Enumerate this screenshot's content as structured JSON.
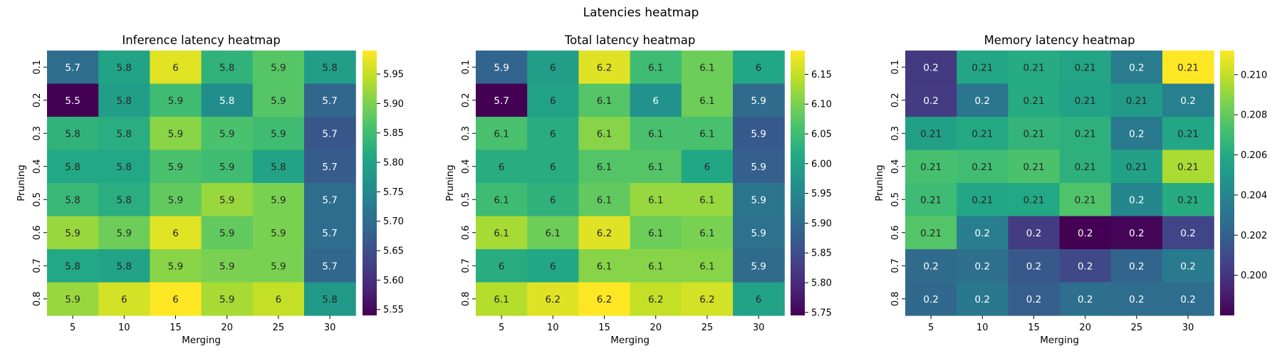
{
  "figure_title": "Latencies heatmap",
  "chart_data": [
    {
      "type": "heatmap",
      "title": "Inference latency heatmap",
      "xlabel": "Merging",
      "ylabel": "Pruning",
      "x_categories": [
        "5",
        "10",
        "15",
        "20",
        "25",
        "30"
      ],
      "y_categories": [
        "0.1",
        "0.2",
        "0.3",
        "0.4",
        "0.5",
        "0.6",
        "0.7",
        "0.8"
      ],
      "colormap": "viridis",
      "vmin": 5.54,
      "vmax": 5.99,
      "colorbar_ticks": [
        "5.55",
        "5.60",
        "5.65",
        "5.70",
        "5.75",
        "5.80",
        "5.85",
        "5.90",
        "5.95"
      ],
      "values": [
        [
          5.7,
          5.8,
          5.97,
          5.83,
          5.87,
          5.79
        ],
        [
          5.54,
          5.79,
          5.85,
          5.76,
          5.87,
          5.69
        ],
        [
          5.83,
          5.82,
          5.91,
          5.86,
          5.85,
          5.66
        ],
        [
          5.81,
          5.81,
          5.86,
          5.85,
          5.8,
          5.67
        ],
        [
          5.84,
          5.82,
          5.88,
          5.92,
          5.9,
          5.7
        ],
        [
          5.92,
          5.89,
          5.97,
          5.88,
          5.9,
          5.7
        ],
        [
          5.81,
          5.8,
          5.91,
          5.9,
          5.9,
          5.69
        ],
        [
          5.92,
          5.96,
          5.99,
          5.93,
          5.95,
          5.78
        ]
      ],
      "labels": [
        [
          "5.7",
          "5.8",
          "6",
          "5.8",
          "5.9",
          "5.8"
        ],
        [
          "5.5",
          "5.8",
          "5.9",
          "5.8",
          "5.9",
          "5.7"
        ],
        [
          "5.8",
          "5.8",
          "5.9",
          "5.9",
          "5.9",
          "5.7"
        ],
        [
          "5.8",
          "5.8",
          "5.9",
          "5.9",
          "5.8",
          "5.7"
        ],
        [
          "5.8",
          "5.8",
          "5.9",
          "5.9",
          "5.9",
          "5.7"
        ],
        [
          "5.9",
          "5.9",
          "6",
          "5.9",
          "5.9",
          "5.7"
        ],
        [
          "5.8",
          "5.8",
          "5.9",
          "5.9",
          "5.9",
          "5.7"
        ],
        [
          "5.9",
          "6",
          "6",
          "5.9",
          "6",
          "5.8"
        ]
      ]
    },
    {
      "type": "heatmap",
      "title": "Total latency heatmap",
      "xlabel": "Merging",
      "ylabel": "Pruning",
      "x_categories": [
        "5",
        "10",
        "15",
        "20",
        "25",
        "30"
      ],
      "y_categories": [
        "0.1",
        "0.2",
        "0.3",
        "0.4",
        "0.5",
        "0.6",
        "0.7",
        "0.8"
      ],
      "colormap": "viridis",
      "vmin": 5.745,
      "vmax": 6.19,
      "colorbar_ticks": [
        "5.75",
        "5.80",
        "5.85",
        "5.90",
        "5.95",
        "6.00",
        "6.05",
        "6.10",
        "6.15"
      ],
      "values": [
        [
          5.89,
          5.99,
          6.17,
          6.05,
          6.09,
          6.01
        ],
        [
          5.745,
          6.0,
          6.07,
          5.97,
          6.09,
          5.9
        ],
        [
          6.06,
          6.02,
          6.11,
          6.06,
          6.06,
          5.87
        ],
        [
          6.02,
          6.02,
          6.07,
          6.07,
          6.01,
          5.88
        ],
        [
          6.05,
          6.03,
          6.08,
          6.12,
          6.12,
          5.92
        ],
        [
          6.13,
          6.09,
          6.17,
          6.09,
          6.1,
          5.91
        ],
        [
          6.02,
          6.01,
          6.11,
          6.11,
          6.11,
          5.9
        ],
        [
          6.14,
          6.17,
          6.19,
          6.15,
          6.16,
          6.0
        ]
      ],
      "labels": [
        [
          "5.9",
          "6",
          "6.2",
          "6.1",
          "6.1",
          "6"
        ],
        [
          "5.7",
          "6",
          "6.1",
          "6",
          "6.1",
          "5.9"
        ],
        [
          "6.1",
          "6",
          "6.1",
          "6.1",
          "6.1",
          "5.9"
        ],
        [
          "6",
          "6",
          "6.1",
          "6.1",
          "6",
          "5.9"
        ],
        [
          "6.1",
          "6",
          "6.1",
          "6.1",
          "6.1",
          "5.9"
        ],
        [
          "6.1",
          "6.1",
          "6.2",
          "6.1",
          "6.1",
          "5.9"
        ],
        [
          "6",
          "6",
          "6.1",
          "6.1",
          "6.1",
          "5.9"
        ],
        [
          "6.1",
          "6.2",
          "6.2",
          "6.2",
          "6.2",
          "6"
        ]
      ]
    },
    {
      "type": "heatmap",
      "title": "Memory latency heatmap",
      "xlabel": "Merging",
      "ylabel": "Pruning",
      "x_categories": [
        "5",
        "10",
        "15",
        "20",
        "25",
        "30"
      ],
      "y_categories": [
        "0.1",
        "0.2",
        "0.3",
        "0.4",
        "0.5",
        "0.6",
        "0.7",
        "0.8"
      ],
      "colormap": "viridis",
      "vmin": 0.198,
      "vmax": 0.2112,
      "colorbar_ticks": [
        "0.200",
        "0.202",
        "0.204",
        "0.206",
        "0.208",
        "0.210"
      ],
      "values": [
        [
          0.2002,
          0.2058,
          0.2061,
          0.2057,
          0.2035,
          0.2112
        ],
        [
          0.2003,
          0.2032,
          0.2061,
          0.2056,
          0.2052,
          0.2037
        ],
        [
          0.2054,
          0.206,
          0.2066,
          0.2064,
          0.2034,
          0.2058
        ],
        [
          0.2073,
          0.2071,
          0.2074,
          0.2064,
          0.2055,
          0.2095
        ],
        [
          0.207,
          0.2058,
          0.2059,
          0.2075,
          0.204,
          0.2061
        ],
        [
          0.2076,
          0.2036,
          0.2003,
          0.198,
          0.1982,
          0.2007
        ],
        [
          0.2026,
          0.2028,
          0.2016,
          0.2009,
          0.2023,
          0.2034
        ],
        [
          0.2025,
          0.2033,
          0.2019,
          0.2028,
          0.2027,
          0.2027
        ]
      ],
      "labels": [
        [
          "0.2",
          "0.21",
          "0.21",
          "0.21",
          "0.2",
          "0.21"
        ],
        [
          "0.2",
          "0.2",
          "0.21",
          "0.21",
          "0.21",
          "0.2"
        ],
        [
          "0.21",
          "0.21",
          "0.21",
          "0.21",
          "0.2",
          "0.21"
        ],
        [
          "0.21",
          "0.21",
          "0.21",
          "0.21",
          "0.21",
          "0.21"
        ],
        [
          "0.21",
          "0.21",
          "0.21",
          "0.21",
          "0.2",
          "0.21"
        ],
        [
          "0.21",
          "0.2",
          "0.2",
          "0.2",
          "0.2",
          "0.2"
        ],
        [
          "0.2",
          "0.2",
          "0.2",
          "0.2",
          "0.2",
          "0.2"
        ],
        [
          "0.2",
          "0.2",
          "0.2",
          "0.2",
          "0.2",
          "0.2"
        ]
      ]
    }
  ]
}
